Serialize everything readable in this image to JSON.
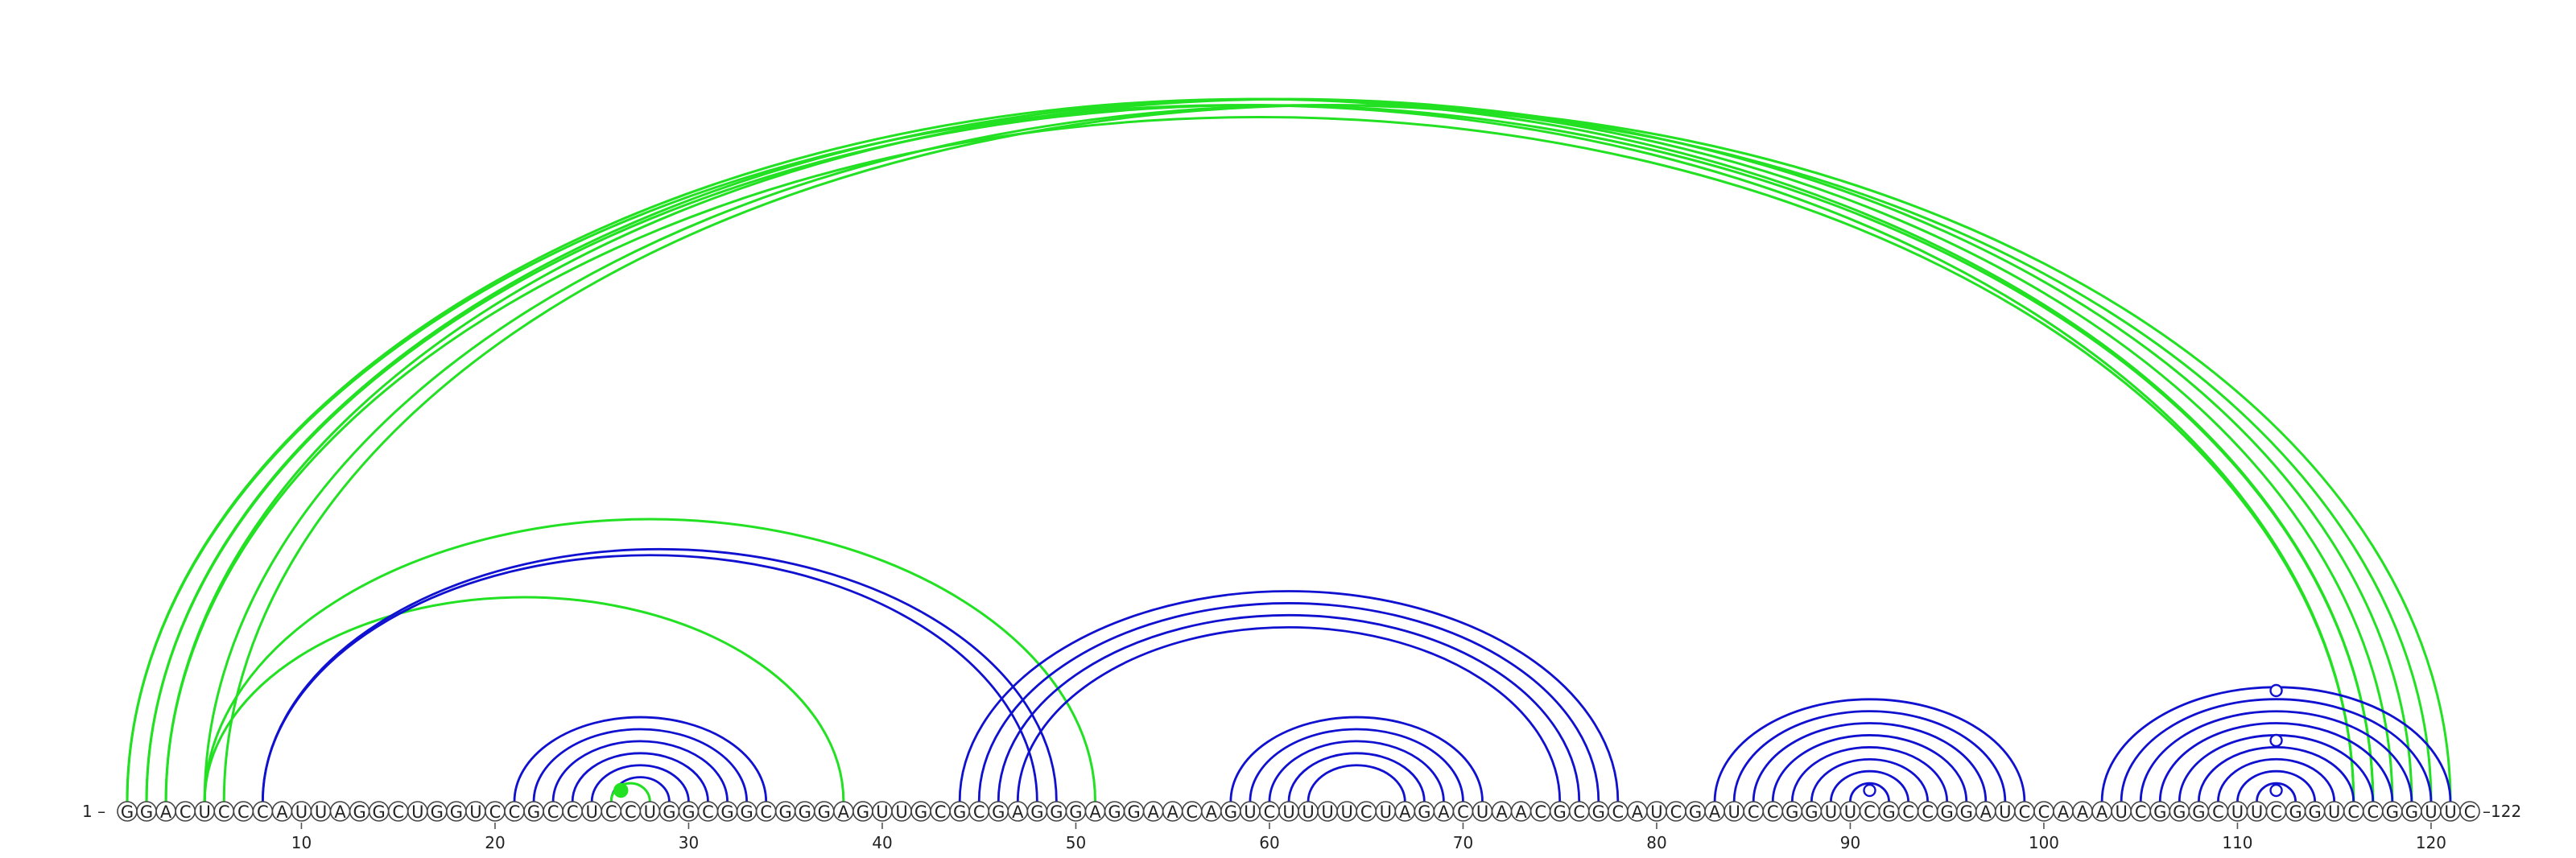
{
  "sequence": "GGACUCCCAUUAGGCUGGUCCGCCUCCUGGCGGCGGGAGUUGCGCGAGGGAGGAACAGUCUUUUCUAGACUAACGCGCAUCGAUCCGGUUCGCCGGAUCCAAAUCGGGCUUCGGUCCGGUUC",
  "start_label": "1",
  "end_label": "122",
  "ticks": [
    10,
    20,
    30,
    40,
    50,
    60,
    70,
    80,
    90,
    100,
    110,
    120
  ],
  "colors": {
    "blue": "#1010d0",
    "green": "#22e022"
  },
  "arc_groups": [
    {
      "color": "green",
      "pairs": [
        [
          1,
          117
        ],
        [
          2,
          118
        ],
        [
          3,
          119
        ],
        [
          5,
          120
        ],
        [
          6,
          121
        ]
      ],
      "note_style": "outer"
    },
    {
      "color": "green",
      "pairs": [
        [
          1,
          116
        ],
        [
          2,
          117
        ],
        [
          3,
          116
        ]
      ]
    },
    {
      "color": "green",
      "pairs": [
        [
          5,
          38
        ],
        [
          5,
          51
        ]
      ]
    },
    {
      "color": "blue",
      "pairs": [
        [
          8,
          48
        ],
        [
          8,
          49
        ]
      ]
    },
    {
      "color": "blue",
      "pairs": [
        [
          21,
          34
        ],
        [
          22,
          33
        ],
        [
          23,
          32
        ],
        [
          24,
          31
        ],
        [
          25,
          30
        ],
        [
          26,
          29
        ]
      ]
    },
    {
      "color": "green",
      "pairs": [
        [
          26,
          28
        ]
      ]
    },
    {
      "color": "blue",
      "pairs": [
        [
          44,
          78
        ],
        [
          45,
          77
        ],
        [
          46,
          76
        ],
        [
          47,
          75
        ]
      ]
    },
    {
      "color": "blue",
      "pairs": [
        [
          58,
          71
        ],
        [
          59,
          70
        ],
        [
          60,
          69
        ],
        [
          61,
          68
        ],
        [
          62,
          67
        ]
      ]
    },
    {
      "color": "blue",
      "pairs": [
        [
          83,
          99
        ],
        [
          84,
          98
        ],
        [
          85,
          97
        ],
        [
          86,
          96
        ],
        [
          87,
          95
        ],
        [
          88,
          94
        ],
        [
          89,
          93
        ],
        [
          90,
          92
        ]
      ]
    },
    {
      "color": "blue",
      "pairs": [
        [
          103,
          121
        ],
        [
          104,
          120
        ],
        [
          105,
          119
        ],
        [
          106,
          118
        ],
        [
          107,
          117
        ],
        [
          108,
          116
        ],
        [
          109,
          115
        ],
        [
          110,
          114
        ],
        [
          111,
          113
        ]
      ]
    }
  ],
  "dots": [
    {
      "position": 26.5,
      "level": 0,
      "color": "green",
      "filled": true
    },
    {
      "position": 91,
      "level": 0,
      "color": "blue",
      "filled": false
    },
    {
      "position": 112,
      "level": 0,
      "color": "blue",
      "filled": false
    },
    {
      "position": 112,
      "level": 1,
      "color": "blue",
      "filled": false
    },
    {
      "position": 112,
      "level": 2,
      "color": "blue",
      "filled": false
    }
  ]
}
